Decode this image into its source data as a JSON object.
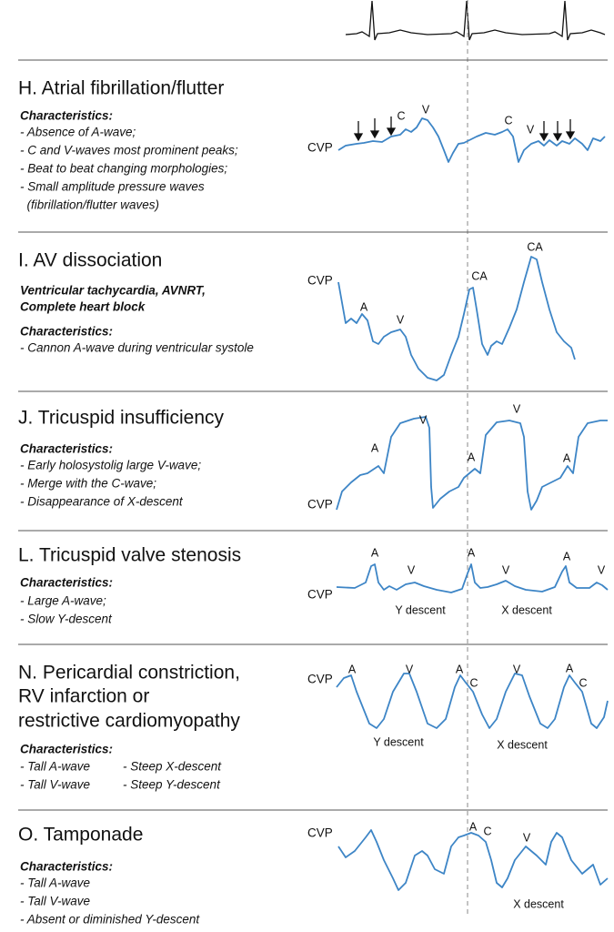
{
  "sections": [
    {
      "title_lines": [
        "H. Atrial fibrillation/flutter"
      ],
      "characteristics_label": "Characteristics:",
      "items": [
        "- Absence of A-wave;",
        "- C and V-waves most prominent peaks;",
        "- Beat to beat changing morphologies;",
        "- Small amplitude pressure waves",
        "  (fibrillation/flutter waves)"
      ],
      "wave_labels": [
        "CVP",
        "C",
        "V",
        "C",
        "V"
      ]
    },
    {
      "title_lines": [
        "I. AV dissociation"
      ],
      "conditions": [
        "Ventricular tachycardia, AVNRT,",
        "Complete heart block"
      ],
      "characteristics_label": "Characteristics:",
      "items": [
        "- Cannon A-wave during ventricular systole"
      ],
      "wave_labels": [
        "CVP",
        "A",
        "V",
        "CA",
        "CA"
      ]
    },
    {
      "title_lines": [
        "J. Tricuspid insufficiency"
      ],
      "characteristics_label": "Characteristics:",
      "items": [
        "- Early holosystolig large V-wave;",
        "- Merge with the C-wave;",
        "- Disappearance of X-descent"
      ],
      "wave_labels": [
        "A",
        "V",
        "CVP",
        "A",
        "V",
        "A"
      ]
    },
    {
      "title_lines": [
        "L. Tricuspid valve stenosis"
      ],
      "characteristics_label": "Characteristics:",
      "items": [
        "- Large A-wave;",
        "- Slow Y-descent"
      ],
      "wave_labels": [
        "A",
        "V",
        "A",
        "V",
        "A",
        "V",
        "CVP",
        "Y descent",
        "X descent"
      ]
    },
    {
      "title_lines": [
        "N. Pericardial constriction,",
        "RV infarction or",
        "restrictive cardiomyopathy"
      ],
      "characteristics_label": "Characteristics:",
      "items": [
        "- Tall A-wave",
        "- Steep X-descent",
        "- Tall V-wave",
        "- Steep Y-descent"
      ],
      "wave_labels": [
        "CVP",
        "A",
        "V",
        "A",
        "C",
        "V",
        "A",
        "C",
        "Y descent",
        "X descent"
      ]
    },
    {
      "title_lines": [
        "O. Tamponade"
      ],
      "characteristics_label": "Characteristics:",
      "items": [
        "- Tall A-wave",
        "- Tall V-wave",
        "- Absent or diminished Y-descent"
      ],
      "wave_labels": [
        "CVP",
        "A",
        "C",
        "V",
        "X descent"
      ]
    }
  ]
}
